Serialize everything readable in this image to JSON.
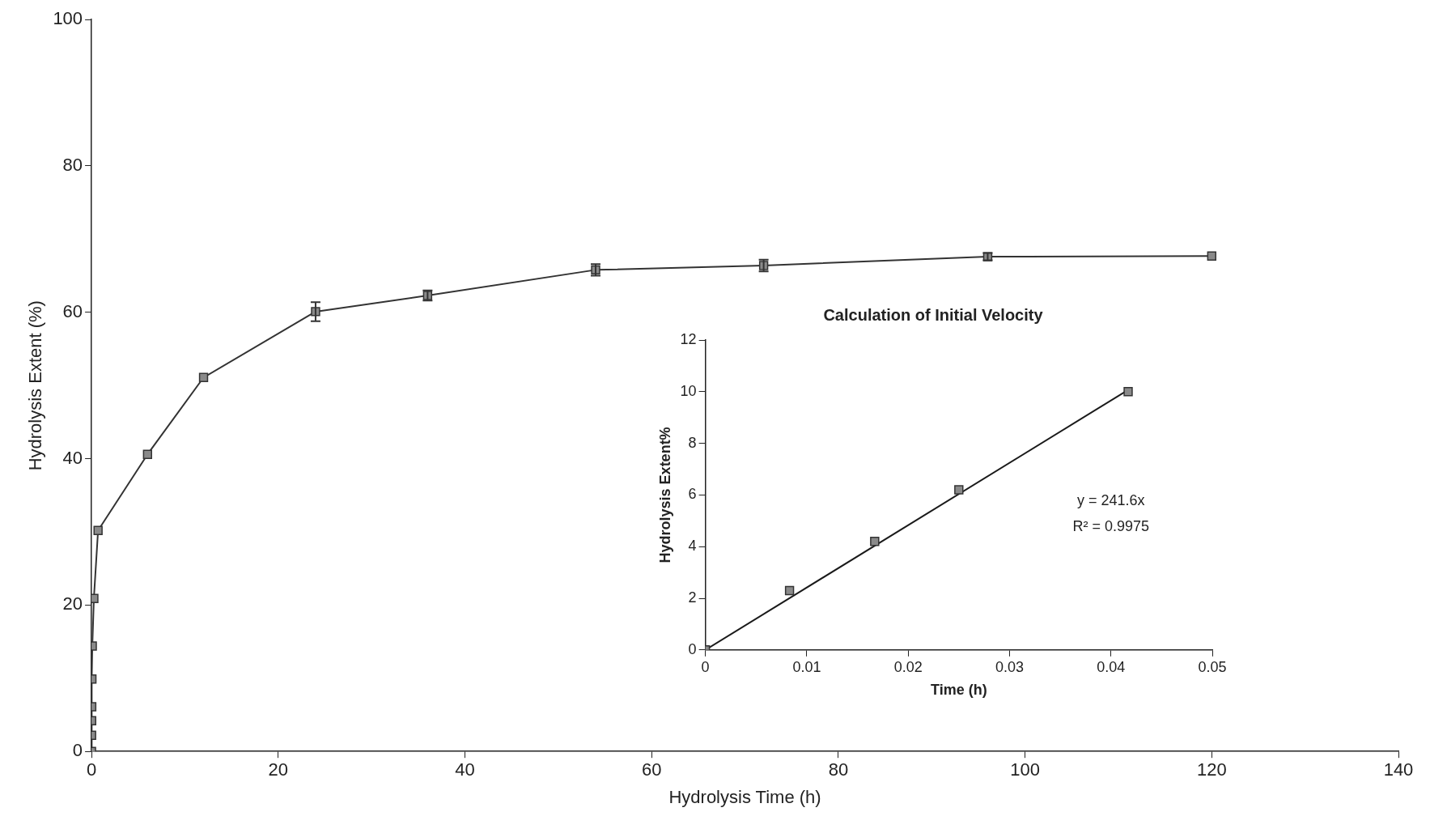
{
  "chart_data": [
    {
      "type": "line",
      "xlabel": "Hydrolysis Time (h)",
      "ylabel": "Hydrolysis Extent (%)",
      "xlim": [
        0,
        140
      ],
      "xticks": [
        0,
        20,
        40,
        60,
        80,
        100,
        120,
        140
      ],
      "ylim": [
        0,
        100
      ],
      "yticks": [
        0,
        20,
        40,
        60,
        80,
        100
      ],
      "grid": false,
      "legend": false,
      "marker": "square",
      "series": [
        {
          "color": "#333333",
          "x": [
            0,
            0.008,
            0.017,
            0.025,
            0.042,
            0.083,
            0.25,
            0.7,
            6,
            12,
            24,
            36,
            54,
            72,
            96,
            120
          ],
          "values": [
            0,
            2.2,
            4.2,
            6.1,
            9.9,
            14.4,
            20.9,
            30.2,
            40.6,
            51.1,
            60.1,
            62.3,
            65.8,
            66.4,
            67.6,
            67.7
          ],
          "errors": [
            null,
            null,
            null,
            null,
            null,
            null,
            null,
            null,
            null,
            null,
            1.3,
            0.7,
            0.8,
            0.8,
            0.5,
            null
          ]
        }
      ]
    },
    {
      "type": "scatter",
      "title": "Calculation of Initial Velocity",
      "xlabel": "Time (h)",
      "ylabel": "Hydrolysis Extent%",
      "xlim": [
        0,
        0.05
      ],
      "xticks": [
        0,
        0.01,
        0.02,
        0.03,
        0.04,
        0.05
      ],
      "ylim": [
        0,
        12
      ],
      "yticks": [
        0,
        2,
        4,
        6,
        8,
        10,
        12
      ],
      "grid": false,
      "legend": false,
      "marker": "square",
      "annotations": [
        "y = 241.6x",
        "R² = 0.9975"
      ],
      "series": [
        {
          "color": "#333333",
          "x": [
            0,
            0.0083,
            0.0167,
            0.025,
            0.0417
          ],
          "values": [
            0,
            2.3,
            4.2,
            6.2,
            10
          ]
        },
        {
          "type": "line",
          "marker": "none",
          "color": "#1a1a1a",
          "x": [
            0,
            0.0417
          ],
          "values": [
            0,
            10.07
          ]
        }
      ]
    }
  ]
}
